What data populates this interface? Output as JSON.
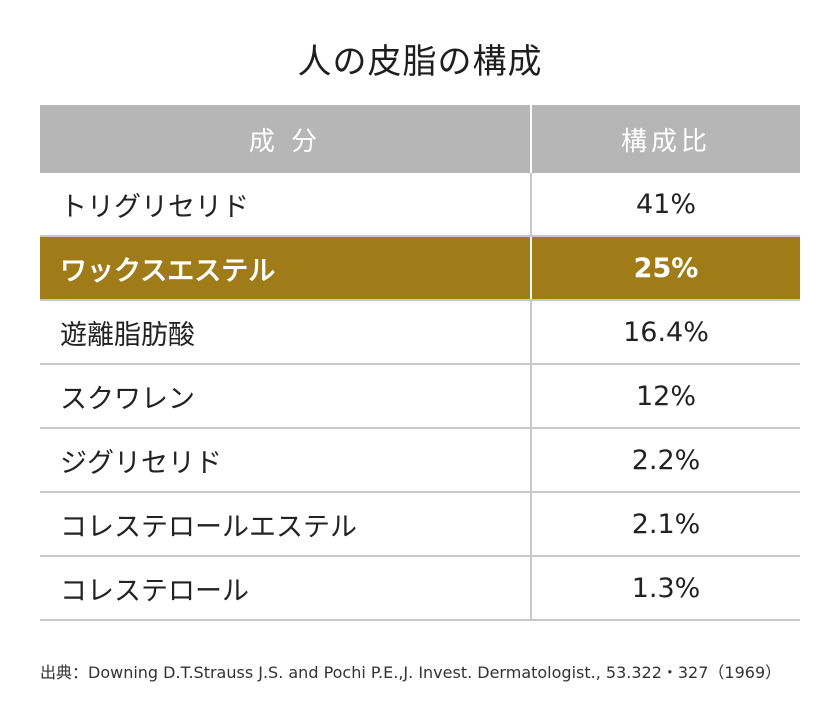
{
  "title": "人の皮脂の構成",
  "colors": {
    "header_bg": "#b6b6b6",
    "highlight_bg": "#a07c18",
    "grid": "#c8c8c8"
  },
  "chart_data": {
    "type": "table",
    "title": "人の皮脂の構成",
    "columns": [
      "成 分",
      "構成比"
    ],
    "rows": [
      {
        "name": "トリグリセリド",
        "value_label": "41%",
        "value": 41,
        "highlight": false
      },
      {
        "name": "ワックスエステル",
        "value_label": "25%",
        "value": 25,
        "highlight": true
      },
      {
        "name": "遊離脂肪酸",
        "value_label": "16.4%",
        "value": 16.4,
        "highlight": false
      },
      {
        "name": "スクワレン",
        "value_label": "12%",
        "value": 12,
        "highlight": false
      },
      {
        "name": "ジグリセリド",
        "value_label": "2.2%",
        "value": 2.2,
        "highlight": false
      },
      {
        "name": "コレステロールエステル",
        "value_label": "2.1%",
        "value": 2.1,
        "highlight": false
      },
      {
        "name": "コレステロール",
        "value_label": "1.3%",
        "value": 1.3,
        "highlight": false
      }
    ]
  },
  "source": "出典：Downing D.T.Strauss J.S. and Pochi P.E.,J. Invest. Dermatologist., 53.322・327（1969）"
}
